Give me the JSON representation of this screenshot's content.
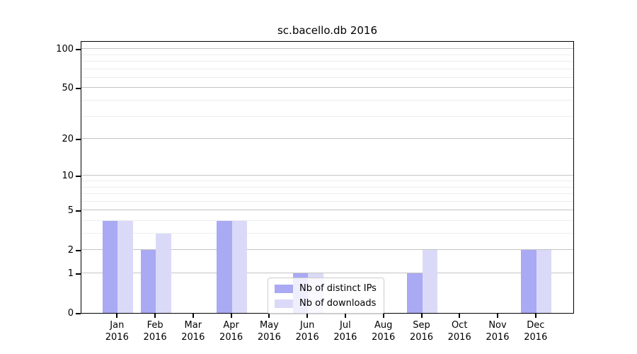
{
  "title": "sc.bacello.db 2016",
  "chart_data": {
    "type": "bar",
    "title": "sc.bacello.db 2016",
    "categories": [
      "Jan",
      "Feb",
      "Mar",
      "Apr",
      "May",
      "Jun",
      "Jul",
      "Aug",
      "Sep",
      "Oct",
      "Nov",
      "Dec"
    ],
    "category_year": "2016",
    "series": [
      {
        "name": "Nb of distinct IPs",
        "color": "#a9a9f4",
        "values": [
          4,
          2,
          0,
          4,
          0,
          1,
          0,
          0,
          1,
          0,
          0,
          2
        ]
      },
      {
        "name": "Nb of downloads",
        "color": "#dadaf8",
        "values": [
          4,
          3,
          0,
          4,
          0,
          1,
          0,
          0,
          2,
          0,
          0,
          2
        ]
      }
    ],
    "yscale": "log1p",
    "yticks": [
      0,
      1,
      2,
      5,
      10,
      20,
      50,
      100
    ],
    "minor_gridline_values": [
      3,
      4,
      6,
      7,
      8,
      9,
      30,
      40,
      60,
      70,
      80,
      90
    ],
    "ylim": [
      0,
      116
    ],
    "xlabel": "",
    "ylabel": "",
    "grid": "horizontal",
    "legend_position": "center-bottom",
    "colors": {
      "major_grid": "#c4c4c4",
      "minor_grid": "#ededed",
      "axis": "#000000",
      "background": "#ffffff"
    }
  }
}
